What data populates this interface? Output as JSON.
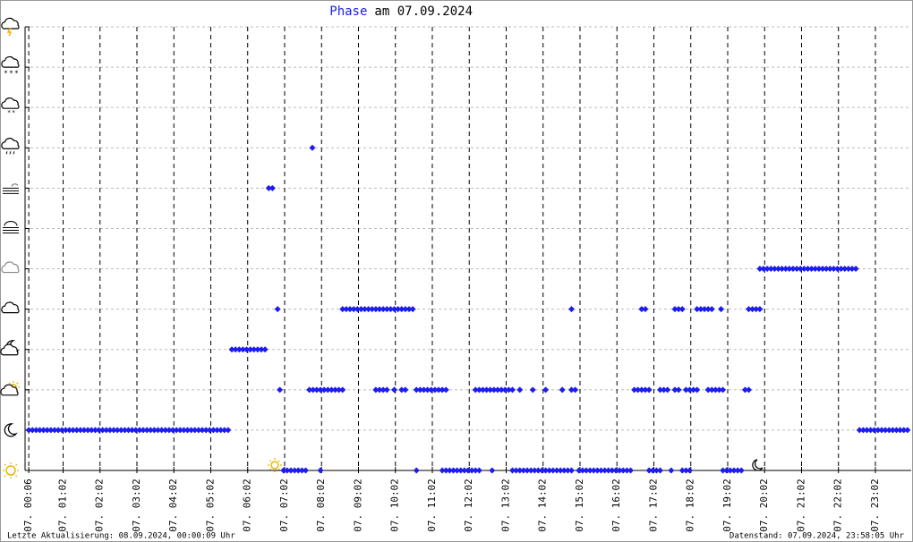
{
  "chart_data": {
    "type": "scatter",
    "title": "Phase",
    "title_suffix": "am 07.09.2024",
    "footer_left": "Letzte Aktualisierung: 08.09.2024, 00:00:09 Uhr",
    "footer_right": "Datenstand: 07.09.2024, 23:58:05 Uhr",
    "color": "#1c1cf0",
    "grid": true,
    "xlim": [
      0,
      24
    ],
    "ylim": [
      0,
      11
    ],
    "yticks": [
      0,
      1,
      2,
      3,
      4,
      5,
      6,
      7,
      8,
      9,
      10,
      11
    ],
    "xticks": [
      {
        "value": 0.1,
        "label": "07. 00:06"
      },
      {
        "value": 1.03,
        "label": "07. 01:02"
      },
      {
        "value": 2.03,
        "label": "07. 02:02"
      },
      {
        "value": 3.03,
        "label": "07. 03:02"
      },
      {
        "value": 4.03,
        "label": "07. 04:02"
      },
      {
        "value": 5.03,
        "label": "07. 05:02"
      },
      {
        "value": 6.03,
        "label": "07. 06:02"
      },
      {
        "value": 7.03,
        "label": "07. 07:02"
      },
      {
        "value": 8.03,
        "label": "07. 08:02"
      },
      {
        "value": 9.03,
        "label": "07. 09:02"
      },
      {
        "value": 10.03,
        "label": "07. 10:02"
      },
      {
        "value": 11.03,
        "label": "07. 11:02"
      },
      {
        "value": 12.03,
        "label": "07. 12:02"
      },
      {
        "value": 13.03,
        "label": "07. 13:02"
      },
      {
        "value": 14.03,
        "label": "07. 14:02"
      },
      {
        "value": 15.03,
        "label": "07. 15:02"
      },
      {
        "value": 16.03,
        "label": "07. 16:02"
      },
      {
        "value": 17.03,
        "label": "07. 17:02"
      },
      {
        "value": 18.03,
        "label": "07. 18:02"
      },
      {
        "value": 19.03,
        "label": "07. 19:02"
      },
      {
        "value": 20.03,
        "label": "07. 20:02"
      },
      {
        "value": 21.03,
        "label": "07. 21:02"
      },
      {
        "value": 22.03,
        "label": "07. 22:02"
      },
      {
        "value": 23.03,
        "label": "07. 23:02"
      }
    ],
    "points": [
      [
        0.1,
        1
      ],
      [
        0.2,
        1
      ],
      [
        0.3,
        1
      ],
      [
        0.4,
        1
      ],
      [
        0.5,
        1
      ],
      [
        0.6,
        1
      ],
      [
        0.7,
        1
      ],
      [
        0.8,
        1
      ],
      [
        0.9,
        1
      ],
      [
        1.0,
        1
      ],
      [
        1.1,
        1
      ],
      [
        1.2,
        1
      ],
      [
        1.3,
        1
      ],
      [
        1.4,
        1
      ],
      [
        1.5,
        1
      ],
      [
        1.6,
        1
      ],
      [
        1.7,
        1
      ],
      [
        1.8,
        1
      ],
      [
        1.9,
        1
      ],
      [
        2.0,
        1
      ],
      [
        2.1,
        1
      ],
      [
        2.2,
        1
      ],
      [
        2.3,
        1
      ],
      [
        2.4,
        1
      ],
      [
        2.5,
        1
      ],
      [
        2.6,
        1
      ],
      [
        2.7,
        1
      ],
      [
        2.8,
        1
      ],
      [
        2.9,
        1
      ],
      [
        3.0,
        1
      ],
      [
        3.1,
        1
      ],
      [
        3.2,
        1
      ],
      [
        3.3,
        1
      ],
      [
        3.4,
        1
      ],
      [
        3.5,
        1
      ],
      [
        3.6,
        1
      ],
      [
        3.7,
        1
      ],
      [
        3.8,
        1
      ],
      [
        3.9,
        1
      ],
      [
        4.0,
        1
      ],
      [
        4.1,
        1
      ],
      [
        4.2,
        1
      ],
      [
        4.3,
        1
      ],
      [
        4.4,
        1
      ],
      [
        4.5,
        1
      ],
      [
        4.6,
        1
      ],
      [
        4.7,
        1
      ],
      [
        4.8,
        1
      ],
      [
        4.9,
        1
      ],
      [
        5.0,
        1
      ],
      [
        5.1,
        1
      ],
      [
        5.2,
        1
      ],
      [
        5.3,
        1
      ],
      [
        5.4,
        1
      ],
      [
        5.5,
        1
      ],
      [
        5.6,
        3
      ],
      [
        5.7,
        3
      ],
      [
        5.8,
        3
      ],
      [
        5.9,
        3
      ],
      [
        6.0,
        3
      ],
      [
        6.1,
        3
      ],
      [
        6.2,
        3
      ],
      [
        6.3,
        3
      ],
      [
        6.4,
        3
      ],
      [
        6.5,
        3
      ],
      [
        6.6,
        7
      ],
      [
        6.7,
        7
      ],
      [
        6.84,
        4
      ],
      [
        6.9,
        2
      ],
      [
        7.0,
        0
      ],
      [
        7.1,
        0
      ],
      [
        7.2,
        0
      ],
      [
        7.3,
        0
      ],
      [
        7.4,
        0
      ],
      [
        7.5,
        0
      ],
      [
        7.6,
        0
      ],
      [
        8.0,
        0
      ],
      [
        7.78,
        8
      ],
      [
        7.7,
        2
      ],
      [
        7.8,
        2
      ],
      [
        7.9,
        2
      ],
      [
        8.0,
        2
      ],
      [
        8.1,
        2
      ],
      [
        8.2,
        2
      ],
      [
        8.3,
        2
      ],
      [
        8.4,
        2
      ],
      [
        8.5,
        2
      ],
      [
        8.6,
        2
      ],
      [
        8.6,
        4
      ],
      [
        8.7,
        4
      ],
      [
        8.8,
        4
      ],
      [
        8.9,
        4
      ],
      [
        9.0,
        4
      ],
      [
        9.1,
        4
      ],
      [
        9.2,
        4
      ],
      [
        9.3,
        4
      ],
      [
        9.4,
        4
      ],
      [
        9.5,
        4
      ],
      [
        9.6,
        4
      ],
      [
        9.7,
        4
      ],
      [
        9.8,
        4
      ],
      [
        9.9,
        4
      ],
      [
        10.0,
        4
      ],
      [
        10.1,
        4
      ],
      [
        10.2,
        4
      ],
      [
        10.3,
        4
      ],
      [
        10.4,
        4
      ],
      [
        10.5,
        4
      ],
      [
        9.5,
        2
      ],
      [
        9.6,
        2
      ],
      [
        9.7,
        2
      ],
      [
        9.8,
        2
      ],
      [
        10.0,
        2
      ],
      [
        10.2,
        2
      ],
      [
        10.3,
        2
      ],
      [
        10.6,
        2
      ],
      [
        10.7,
        2
      ],
      [
        10.8,
        2
      ],
      [
        10.9,
        2
      ],
      [
        11.0,
        2
      ],
      [
        11.1,
        2
      ],
      [
        11.2,
        2
      ],
      [
        11.3,
        2
      ],
      [
        11.4,
        2
      ],
      [
        10.6,
        0
      ],
      [
        11.3,
        0
      ],
      [
        11.4,
        0
      ],
      [
        11.5,
        0
      ],
      [
        11.6,
        0
      ],
      [
        11.7,
        0
      ],
      [
        11.8,
        0
      ],
      [
        11.9,
        0
      ],
      [
        12.0,
        0
      ],
      [
        12.1,
        0
      ],
      [
        12.2,
        0
      ],
      [
        12.3,
        0
      ],
      [
        12.65,
        0
      ],
      [
        12.2,
        2
      ],
      [
        12.3,
        2
      ],
      [
        12.4,
        2
      ],
      [
        12.5,
        2
      ],
      [
        12.6,
        2
      ],
      [
        12.7,
        2
      ],
      [
        12.8,
        2
      ],
      [
        12.9,
        2
      ],
      [
        13.0,
        2
      ],
      [
        13.1,
        2
      ],
      [
        13.2,
        2
      ],
      [
        13.4,
        2
      ],
      [
        13.75,
        2
      ],
      [
        14.1,
        2
      ],
      [
        14.55,
        2
      ],
      [
        14.8,
        2
      ],
      [
        14.9,
        2
      ],
      [
        13.2,
        0
      ],
      [
        13.3,
        0
      ],
      [
        13.4,
        0
      ],
      [
        13.5,
        0
      ],
      [
        13.6,
        0
      ],
      [
        13.7,
        0
      ],
      [
        13.8,
        0
      ],
      [
        13.9,
        0
      ],
      [
        14.0,
        0
      ],
      [
        14.1,
        0
      ],
      [
        14.2,
        0
      ],
      [
        14.3,
        0
      ],
      [
        14.4,
        0
      ],
      [
        14.5,
        0
      ],
      [
        14.6,
        0
      ],
      [
        14.7,
        0
      ],
      [
        14.8,
        0
      ],
      [
        15.0,
        0
      ],
      [
        15.1,
        0
      ],
      [
        15.2,
        0
      ],
      [
        15.3,
        0
      ],
      [
        15.4,
        0
      ],
      [
        15.5,
        0
      ],
      [
        15.6,
        0
      ],
      [
        15.7,
        0
      ],
      [
        15.8,
        0
      ],
      [
        15.9,
        0
      ],
      [
        16.0,
        0
      ],
      [
        16.1,
        0
      ],
      [
        16.2,
        0
      ],
      [
        16.3,
        0
      ],
      [
        16.4,
        0
      ],
      [
        16.9,
        0
      ],
      [
        17.0,
        0
      ],
      [
        17.1,
        0
      ],
      [
        17.2,
        0
      ],
      [
        17.5,
        0
      ],
      [
        17.8,
        0
      ],
      [
        17.9,
        0
      ],
      [
        18.0,
        0
      ],
      [
        18.9,
        0
      ],
      [
        19.0,
        0
      ],
      [
        19.1,
        0
      ],
      [
        19.2,
        0
      ],
      [
        19.3,
        0
      ],
      [
        19.4,
        0
      ],
      [
        14.8,
        4
      ],
      [
        16.7,
        4
      ],
      [
        16.8,
        4
      ],
      [
        17.6,
        4
      ],
      [
        17.7,
        4
      ],
      [
        17.8,
        4
      ],
      [
        18.2,
        4
      ],
      [
        18.3,
        4
      ],
      [
        18.4,
        4
      ],
      [
        18.5,
        4
      ],
      [
        18.6,
        4
      ],
      [
        18.85,
        4
      ],
      [
        19.6,
        4
      ],
      [
        19.7,
        4
      ],
      [
        19.8,
        4
      ],
      [
        19.9,
        4
      ],
      [
        16.5,
        2
      ],
      [
        16.6,
        2
      ],
      [
        16.7,
        2
      ],
      [
        16.8,
        2
      ],
      [
        16.9,
        2
      ],
      [
        17.2,
        2
      ],
      [
        17.3,
        2
      ],
      [
        17.4,
        2
      ],
      [
        17.6,
        2
      ],
      [
        17.7,
        2
      ],
      [
        17.9,
        2
      ],
      [
        18.0,
        2
      ],
      [
        18.1,
        2
      ],
      [
        18.2,
        2
      ],
      [
        18.5,
        2
      ],
      [
        18.6,
        2
      ],
      [
        18.7,
        2
      ],
      [
        18.8,
        2
      ],
      [
        18.9,
        2
      ],
      [
        19.5,
        2
      ],
      [
        19.6,
        2
      ],
      [
        19.9,
        5
      ],
      [
        20.0,
        5
      ],
      [
        20.1,
        5
      ],
      [
        20.2,
        5
      ],
      [
        20.3,
        5
      ],
      [
        20.4,
        5
      ],
      [
        20.5,
        5
      ],
      [
        20.6,
        5
      ],
      [
        20.7,
        5
      ],
      [
        20.8,
        5
      ],
      [
        20.9,
        5
      ],
      [
        21.0,
        5
      ],
      [
        21.1,
        5
      ],
      [
        21.2,
        5
      ],
      [
        21.3,
        5
      ],
      [
        21.4,
        5
      ],
      [
        21.5,
        5
      ],
      [
        21.6,
        5
      ],
      [
        21.7,
        5
      ],
      [
        21.8,
        5
      ],
      [
        21.9,
        5
      ],
      [
        22.0,
        5
      ],
      [
        22.1,
        5
      ],
      [
        22.2,
        5
      ],
      [
        22.3,
        5
      ],
      [
        22.4,
        5
      ],
      [
        22.5,
        5
      ],
      [
        22.6,
        1
      ],
      [
        22.7,
        1
      ],
      [
        22.8,
        1
      ],
      [
        22.9,
        1
      ],
      [
        23.0,
        1
      ],
      [
        23.1,
        1
      ],
      [
        23.2,
        1
      ],
      [
        23.3,
        1
      ],
      [
        23.4,
        1
      ],
      [
        23.5,
        1
      ],
      [
        23.6,
        1
      ],
      [
        23.7,
        1
      ],
      [
        23.8,
        1
      ],
      [
        23.9,
        1
      ]
    ]
  }
}
